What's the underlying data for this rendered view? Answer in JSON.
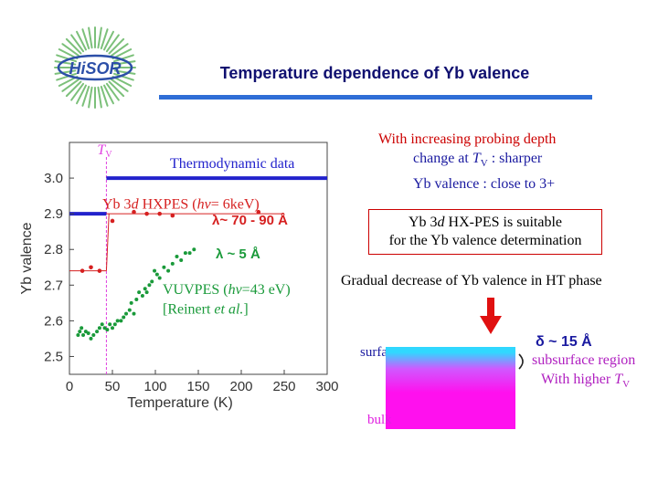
{
  "title": "Temperature dependence of Yb valence",
  "logo_text": "HiSOR",
  "notes": {
    "line1": "With increasing probing depth",
    "line2_prefix": "change at ",
    "line2_suffix": " : sharper",
    "line3": "Yb valence : close to 3+",
    "box_line1_a": "Yb 3",
    "box_line1_b": "d",
    "box_line1_c": " HX-PES is suitable",
    "box_line2": "for the Yb valence determination",
    "line4": "Gradual decrease of Yb valence in HT phase"
  },
  "schematic": {
    "surface_label": "surface",
    "bulk_label": "bulk",
    "delta_label": "δ ~ 15 Å",
    "subsurface_label": "subsurface region",
    "higher_label": "With higher "
  },
  "colors": {
    "title": "#101070",
    "accent_bar": "#2f6ed6",
    "hxpes": "#d62020",
    "vuvpes": "#1a9a3a",
    "thermo": "#2222cc",
    "tv_line": "#e040e0",
    "arrow": "#e01010"
  },
  "chart_data": {
    "type": "scatter",
    "xlabel": "Temperature (K)",
    "ylabel": "Yb valence",
    "xlim": [
      0,
      300
    ],
    "ylim": [
      2.45,
      3.1
    ],
    "xticks": [
      0,
      50,
      100,
      150,
      200,
      250,
      300
    ],
    "yticks": [
      2.5,
      2.6,
      2.7,
      2.8,
      2.9,
      3.0
    ],
    "tv_marker": {
      "label": "T",
      "subscript": "V",
      "x": 43
    },
    "series": [
      {
        "name": "Yb 3d HXPES (hν= 6keV)",
        "label_a": "Yb 3",
        "label_b": "d",
        "label_c": " HXPES (",
        "label_d": "hν",
        "label_e": "= 6keV)",
        "x": [
          15,
          25,
          35,
          50,
          75,
          90,
          105,
          120,
          220
        ],
        "y": [
          2.74,
          2.75,
          2.74,
          2.88,
          2.905,
          2.9,
          2.9,
          2.895,
          2.905
        ],
        "step_low": {
          "x": [
            0,
            43
          ],
          "y": 2.74
        },
        "step_high": {
          "x": [
            43,
            250
          ],
          "y": 2.9
        }
      },
      {
        "name": "VUVPES (hν=43 eV)",
        "label_a": "VUVPES (",
        "label_b": "hν",
        "label_c": "=43 eV)",
        "label_ref_a": "[Reinert ",
        "label_ref_b": "et al.",
        "label_ref_c": "]",
        "x": [
          10,
          12,
          14,
          16,
          19,
          22,
          25,
          28,
          32,
          35,
          38,
          41,
          44,
          47,
          50,
          53,
          56,
          60,
          63,
          66,
          70,
          72,
          75,
          78,
          81,
          85,
          88,
          90,
          93,
          96,
          99,
          102,
          105,
          110,
          115,
          120,
          125,
          130,
          135,
          140,
          145
        ],
        "y": [
          2.56,
          2.57,
          2.58,
          2.56,
          2.57,
          2.565,
          2.55,
          2.56,
          2.57,
          2.58,
          2.59,
          2.58,
          2.575,
          2.59,
          2.58,
          2.59,
          2.6,
          2.6,
          2.61,
          2.62,
          2.63,
          2.65,
          2.62,
          2.66,
          2.68,
          2.67,
          2.69,
          2.68,
          2.7,
          2.71,
          2.74,
          2.73,
          2.72,
          2.75,
          2.74,
          2.76,
          2.78,
          2.77,
          2.79,
          2.79,
          2.8
        ]
      },
      {
        "name": "Thermodynamic data",
        "low": {
          "x": [
            0,
            43
          ],
          "y": 2.9
        },
        "high": {
          "x": [
            43,
            300
          ],
          "y": 3.0
        }
      }
    ],
    "annotations": {
      "lambda_hx": "λ~ 70 - 90 Å",
      "lambda_vuv": "λ ~ 5 Å"
    }
  }
}
